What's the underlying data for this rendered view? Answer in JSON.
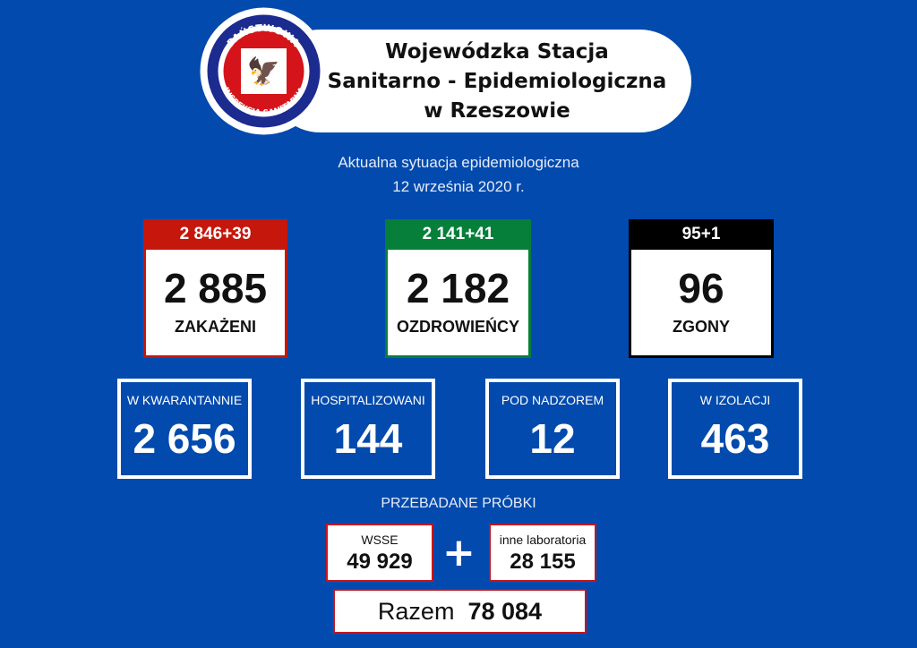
{
  "header": {
    "title_lines": [
      "Wojewódzka Stacja",
      "Sanitarno - Epidemiologiczna",
      "w Rzeszowie"
    ],
    "logo_text_top": "PAŃSTWOWA",
    "logo_text_bottom": "INSPEKCJA SANITARNA"
  },
  "subtitle": "Aktualna sytuacja epidemiologiczna",
  "date": "12 września 2020 r.",
  "main_cards": [
    {
      "change": "2 846+39",
      "value": "2 885",
      "label": "ZAKAŻENI",
      "color": "#c5170c"
    },
    {
      "change": "2 141+41",
      "value": "2 182",
      "label": "OZDROWIEŃCY",
      "color": "#067f3a"
    },
    {
      "change": "95+1",
      "value": "96",
      "label": "ZGONY",
      "color": "#000000"
    }
  ],
  "stats": [
    {
      "label": "W KWARANTANNIE",
      "value": "2 656"
    },
    {
      "label": "HOSPITALIZOWANI",
      "value": "144"
    },
    {
      "label": "POD NADZOREM",
      "value": "12"
    },
    {
      "label": "W IZOLACJI",
      "value": "463"
    }
  ],
  "samples": {
    "title": "PRZEBADANE PRÓBKI",
    "wsse_label": "WSSE",
    "wsse_value": "49 929",
    "plus": "+",
    "other_label": "inne laboratoria",
    "other_value": "28 155",
    "total_label": "Razem",
    "total_value": "78 084"
  },
  "colors": {
    "background": "#024aad",
    "sample_border": "#c4161c"
  }
}
